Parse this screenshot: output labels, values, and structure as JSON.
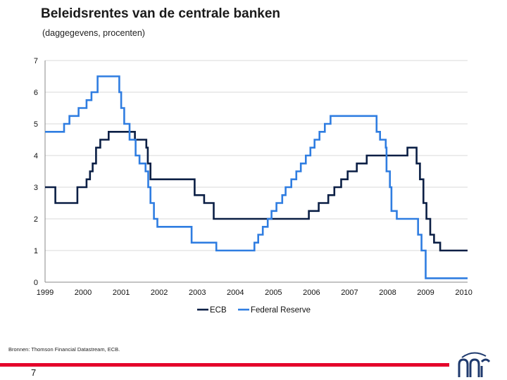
{
  "header": {
    "title": "Beleidsrentes van de centrale banken",
    "subtitle": "(daggegevens, procenten)"
  },
  "footer": {
    "source": "Bronnen: Thomson Financial Datastream, ECB.",
    "page_number": "7"
  },
  "colors": {
    "ecb": "#0b1f45",
    "fed": "#2f7de1",
    "grid": "#d9d9d9",
    "accent_red": "#e4002b",
    "logo_blue": "#1f3a6e"
  },
  "icons": {
    "logo": "bank-logo-icon"
  },
  "chart_data": {
    "type": "line",
    "title": "Beleidsrentes van de centrale banken",
    "subtitle": "(daggegevens, procenten)",
    "xlabel": "",
    "ylabel": "",
    "xlim": [
      1999,
      2010.1
    ],
    "ylim": [
      0,
      7
    ],
    "y_ticks": [
      "0",
      "1",
      "2",
      "3",
      "4",
      "5",
      "6",
      "7"
    ],
    "x_tick_values": [
      1999,
      2000,
      2001,
      2002,
      2003,
      2004,
      2005,
      2006,
      2007,
      2008,
      2009,
      2010
    ],
    "x_ticks": [
      "1999",
      "2000",
      "2001",
      "2002",
      "2003",
      "2004",
      "2005",
      "2006",
      "2007",
      "2008",
      "2009",
      "2010"
    ],
    "grid": "horizontal",
    "legend_position": "bottom",
    "series": [
      {
        "name": "ECB",
        "color": "#0b1f45",
        "x": [
          1999.0,
          1999.27,
          1999.85,
          2000.09,
          2000.18,
          2000.25,
          2000.34,
          2000.45,
          2000.67,
          2000.78,
          2001.36,
          2001.66,
          2001.7,
          2001.77,
          2001.86,
          2002.93,
          2003.18,
          2003.43,
          2003.76,
          2005.93,
          2006.19,
          2006.44,
          2006.6,
          2006.78,
          2006.95,
          2007.19,
          2007.45,
          2008.52,
          2008.76,
          2008.85,
          2008.94,
          2009.02,
          2009.12,
          2009.22,
          2009.38,
          2010.1
        ],
        "y": [
          3.0,
          2.5,
          3.0,
          3.25,
          3.5,
          3.75,
          4.25,
          4.5,
          4.75,
          4.75,
          4.5,
          4.25,
          3.75,
          3.25,
          3.25,
          2.75,
          2.5,
          2.0,
          2.0,
          2.25,
          2.5,
          2.75,
          3.0,
          3.25,
          3.5,
          3.75,
          4.0,
          4.25,
          3.75,
          3.25,
          2.5,
          2.0,
          1.5,
          1.25,
          1.0,
          1.0
        ]
      },
      {
        "name": "Federal Reserve",
        "color": "#2f7de1",
        "x": [
          1999.0,
          1999.5,
          1999.64,
          1999.88,
          2000.09,
          2000.22,
          2000.38,
          2000.5,
          2000.95,
          2001.0,
          2001.08,
          2001.22,
          2001.38,
          2001.48,
          2001.64,
          2001.71,
          2001.77,
          2001.86,
          2001.95,
          2002.85,
          2003.5,
          2004.5,
          2004.6,
          2004.72,
          2004.85,
          2004.95,
          2005.08,
          2005.23,
          2005.32,
          2005.47,
          2005.6,
          2005.72,
          2005.85,
          2005.97,
          2006.08,
          2006.21,
          2006.35,
          2006.5,
          2007.71,
          2007.8,
          2007.95,
          2007.97,
          2008.06,
          2008.1,
          2008.24,
          2008.3,
          2008.8,
          2008.89,
          2009.0,
          2010.1
        ],
        "y": [
          4.75,
          5.0,
          5.25,
          5.5,
          5.75,
          6.0,
          6.5,
          6.5,
          6.0,
          5.5,
          5.0,
          4.5,
          4.0,
          3.75,
          3.5,
          3.0,
          2.5,
          2.0,
          1.75,
          1.25,
          1.0,
          1.25,
          1.5,
          1.75,
          2.0,
          2.25,
          2.5,
          2.75,
          3.0,
          3.25,
          3.5,
          3.75,
          4.0,
          4.25,
          4.5,
          4.75,
          5.0,
          5.25,
          4.75,
          4.5,
          4.25,
          3.5,
          3.0,
          2.25,
          2.0,
          2.0,
          1.5,
          1.0,
          0.125,
          0.125
        ]
      }
    ]
  }
}
